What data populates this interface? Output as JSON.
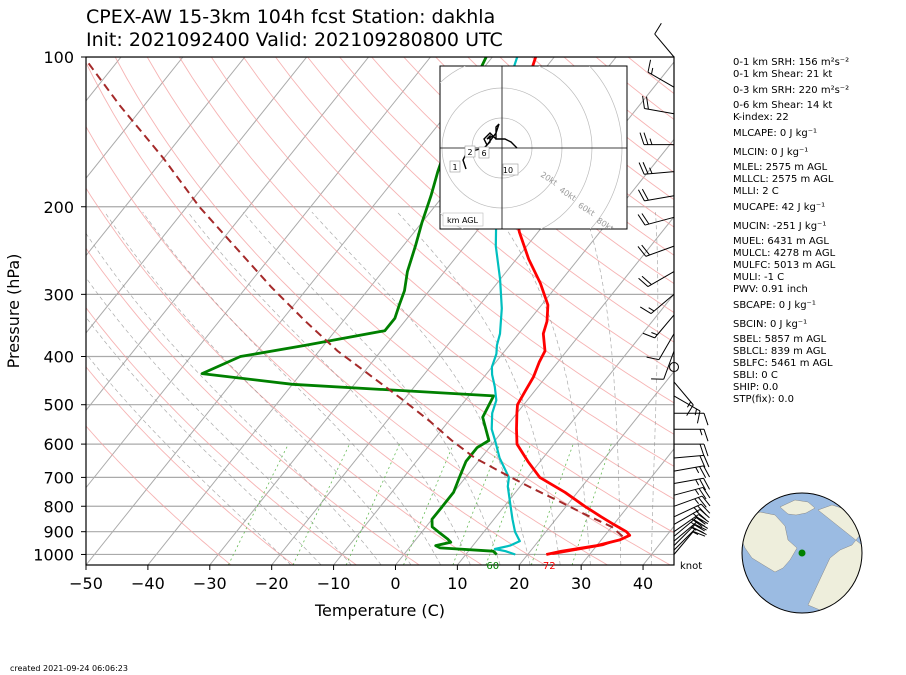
{
  "title": {
    "line1": "CPEX-AW 15-3km  104h fcst  Station: dakhla",
    "line2": "Init: 2021092400  Valid: 202109280800 UTC"
  },
  "chart_data": {
    "type": "skew-t",
    "xlabel": "Temperature (C)",
    "ylabel": "Pressure (hPa)",
    "xticks": [
      -50,
      -40,
      -30,
      -20,
      -10,
      0,
      10,
      20,
      30,
      40
    ],
    "yticks": [
      100,
      200,
      300,
      400,
      500,
      600,
      700,
      800,
      900,
      1000
    ],
    "xlim": [
      -50,
      45
    ],
    "ylim": [
      1050,
      100
    ],
    "series": [
      {
        "key": "temperature",
        "color": "#ff0000",
        "points": [
          [
            23,
            1000
          ],
          [
            25,
            985
          ],
          [
            30,
            960
          ],
          [
            33,
            935
          ],
          [
            34,
            915
          ],
          [
            33,
            900
          ],
          [
            30,
            870
          ],
          [
            27,
            840
          ],
          [
            23,
            800
          ],
          [
            18,
            750
          ],
          [
            12,
            700
          ],
          [
            8,
            650
          ],
          [
            4,
            600
          ],
          [
            2,
            560
          ],
          [
            0,
            520
          ],
          [
            -1,
            500
          ],
          [
            -1.5,
            470
          ],
          [
            -2,
            440
          ],
          [
            -3,
            410
          ],
          [
            -3.5,
            390
          ],
          [
            -6,
            360
          ],
          [
            -7,
            340
          ],
          [
            -9,
            315
          ],
          [
            -13,
            285
          ],
          [
            -18,
            255
          ],
          [
            -23,
            225
          ],
          [
            -27,
            200
          ],
          [
            -31,
            180
          ],
          [
            -34,
            160
          ],
          [
            -37,
            140
          ],
          [
            -40,
            120
          ],
          [
            -43,
            100
          ]
        ]
      },
      {
        "key": "virtual-temperature",
        "color": "#ff0000",
        "dashed": true,
        "points": [
          [
            24,
            1000
          ],
          [
            31,
            960
          ],
          [
            34,
            920
          ],
          [
            33,
            900
          ],
          [
            30,
            870
          ],
          [
            27,
            840
          ],
          [
            23,
            800
          ],
          [
            18,
            750
          ],
          [
            12,
            700
          ],
          [
            8,
            650
          ],
          [
            4,
            600
          ],
          [
            2,
            560
          ]
        ]
      },
      {
        "key": "dewpoint",
        "color": "#008000",
        "points": [
          [
            15,
            1000
          ],
          [
            14,
            985
          ],
          [
            5,
            970
          ],
          [
            4,
            960
          ],
          [
            6,
            945
          ],
          [
            5,
            930
          ],
          [
            3,
            905
          ],
          [
            1,
            880
          ],
          [
            0,
            850
          ],
          [
            0,
            800
          ],
          [
            0,
            750
          ],
          [
            -1,
            700
          ],
          [
            -2,
            650
          ],
          [
            -2,
            610
          ],
          [
            -1,
            590
          ],
          [
            -5,
            530
          ],
          [
            -6,
            480
          ],
          [
            -40,
            455
          ],
          [
            -56,
            433
          ],
          [
            -52,
            400
          ],
          [
            -43,
            380
          ],
          [
            -32,
            355
          ],
          [
            -32,
            335
          ],
          [
            -33,
            315
          ],
          [
            -34,
            295
          ],
          [
            -36,
            270
          ],
          [
            -38,
            240
          ],
          [
            -40,
            215
          ],
          [
            -42,
            190
          ],
          [
            -44,
            170
          ],
          [
            -46,
            150
          ],
          [
            -48,
            125
          ],
          [
            -49,
            120
          ],
          [
            -51,
            100
          ]
        ]
      },
      {
        "key": "wetbulb",
        "color": "#00bfbf",
        "points": [
          [
            18,
            1000
          ],
          [
            16,
            985
          ],
          [
            14,
            975
          ],
          [
            16,
            960
          ],
          [
            17,
            940
          ],
          [
            15,
            900
          ],
          [
            13,
            850
          ],
          [
            11,
            800
          ],
          [
            8,
            730
          ],
          [
            7,
            700
          ],
          [
            3,
            640
          ],
          [
            0,
            590
          ],
          [
            -2,
            560
          ],
          [
            -4,
            520
          ],
          [
            -5,
            490
          ],
          [
            -7,
            460
          ],
          [
            -9,
            435
          ],
          [
            -10,
            420
          ],
          [
            -11,
            395
          ],
          [
            -12,
            380
          ],
          [
            -13,
            360
          ],
          [
            -16,
            320
          ],
          [
            -20,
            280
          ],
          [
            -25,
            240
          ],
          [
            -30,
            200
          ],
          [
            -34,
            180
          ],
          [
            -37,
            160
          ],
          [
            -40,
            140
          ],
          [
            -43,
            120
          ],
          [
            -46,
            100
          ]
        ]
      },
      {
        "key": "parcel",
        "color": "#a52a2a",
        "dashed": true,
        "points": [
          [
            33,
            920
          ],
          [
            30,
            880
          ],
          [
            24,
            830
          ],
          [
            18,
            780
          ],
          [
            12,
            735
          ],
          [
            6,
            690
          ],
          [
            -1,
            640
          ],
          [
            -7,
            590
          ],
          [
            -13,
            540
          ],
          [
            -20,
            490
          ],
          [
            -28,
            440
          ],
          [
            -37,
            390
          ],
          [
            -46,
            340
          ],
          [
            -56,
            290
          ],
          [
            -66,
            245
          ],
          [
            -78,
            200
          ],
          [
            -90,
            160
          ],
          [
            -104,
            125
          ],
          [
            -116,
            100
          ]
        ]
      }
    ],
    "surface_labels": {
      "dewpoint": "60",
      "temperature": "72"
    },
    "wind_barb_units": "knot",
    "barbs": [
      {
        "p": 1000,
        "spd": 10,
        "dir": 40
      },
      {
        "p": 980,
        "spd": 15,
        "dir": 45
      },
      {
        "p": 960,
        "spd": 20,
        "dir": 45
      },
      {
        "p": 940,
        "spd": 25,
        "dir": 50
      },
      {
        "p": 920,
        "spd": 30,
        "dir": 50
      },
      {
        "p": 900,
        "spd": 30,
        "dir": 55
      },
      {
        "p": 870,
        "spd": 30,
        "dir": 60
      },
      {
        "p": 840,
        "spd": 25,
        "dir": 65
      },
      {
        "p": 800,
        "spd": 25,
        "dir": 70
      },
      {
        "p": 760,
        "spd": 25,
        "dir": 75
      },
      {
        "p": 720,
        "spd": 25,
        "dir": 80
      },
      {
        "p": 680,
        "spd": 25,
        "dir": 80
      },
      {
        "p": 640,
        "spd": 20,
        "dir": 85
      },
      {
        "p": 600,
        "spd": 20,
        "dir": 90
      },
      {
        "p": 560,
        "spd": 15,
        "dir": 90
      },
      {
        "p": 520,
        "spd": 10,
        "dir": 90
      },
      {
        "p": 480,
        "spd": 15,
        "dir": 120
      },
      {
        "p": 450,
        "spd": 15,
        "dir": 140
      },
      {
        "p": 420,
        "spd": 0,
        "dir": 0
      },
      {
        "p": 390,
        "spd": 10,
        "dir": 200
      },
      {
        "p": 360,
        "spd": 10,
        "dir": 210
      },
      {
        "p": 330,
        "spd": 15,
        "dir": 220
      },
      {
        "p": 300,
        "spd": 15,
        "dir": 230
      },
      {
        "p": 270,
        "spd": 20,
        "dir": 240
      },
      {
        "p": 240,
        "spd": 20,
        "dir": 250
      },
      {
        "p": 210,
        "spd": 20,
        "dir": 255
      },
      {
        "p": 190,
        "spd": 20,
        "dir": 260
      },
      {
        "p": 170,
        "spd": 25,
        "dir": 265
      },
      {
        "p": 150,
        "spd": 25,
        "dir": 270
      },
      {
        "p": 130,
        "spd": 20,
        "dir": 280
      },
      {
        "p": 115,
        "spd": 15,
        "dir": 300
      },
      {
        "p": 100,
        "spd": 10,
        "dir": 320
      }
    ],
    "hodograph": {
      "ring_labels": [
        "20kt",
        "40kt",
        "60kt",
        "80kt"
      ],
      "height_labels": [
        "1",
        "2",
        "6",
        "10"
      ],
      "legend": "km AGL",
      "points": [
        [
          -12,
          -7
        ],
        [
          -13,
          -4
        ],
        [
          -12,
          -2
        ],
        [
          -10,
          -1
        ],
        [
          -6,
          0
        ],
        [
          -4,
          2
        ],
        [
          -4,
          4
        ],
        [
          -5,
          3
        ],
        [
          -3,
          4
        ],
        [
          -2,
          3
        ],
        [
          -4,
          5
        ],
        [
          -6,
          3
        ],
        [
          -5,
          1
        ],
        [
          -2,
          5
        ],
        [
          -1,
          8
        ],
        [
          -2,
          7
        ],
        [
          -2,
          3
        ],
        [
          1,
          3
        ],
        [
          3,
          2
        ],
        [
          4,
          1
        ],
        [
          5,
          0
        ]
      ]
    },
    "indices": [
      "0-1 km SRH: 156 m²s⁻²",
      "0-1 km Shear: 21 kt",
      "0-3 km SRH: 220 m²s⁻²",
      "0-6 km Shear: 14 kt",
      "K-index: 22",
      "MLCAPE: 0 J kg⁻¹",
      "MLCIN: 0 J kg⁻¹",
      "MLEL: 2575 m AGL",
      "MLLCL: 2575 m AGL",
      "MLLI: 2 C",
      "MUCAPE: 42 J kg⁻¹",
      "MUCIN: -251 J kg⁻¹",
      "MUEL: 6431 m AGL",
      "MULCL: 4278 m AGL",
      "MULFC: 5013 m AGL",
      "MULI: -1 C",
      "PWV: 0.91 inch",
      "SBCAPE: 0 J kg⁻¹",
      "SBCIN: 0 J kg⁻¹",
      "SBEL: 5857 m AGL",
      "SBLCL: 839 m AGL",
      "SBLFC: 5461 m AGL",
      "SBLI: 0 C",
      "SHIP: 0.0",
      "STP(fix): 0.0"
    ]
  },
  "globe": {
    "ocean_color": "#9bbbe2",
    "land_color": "#eeeedc",
    "station_color": "#008000"
  },
  "footer": "created 2021-09-24 06:06:23"
}
